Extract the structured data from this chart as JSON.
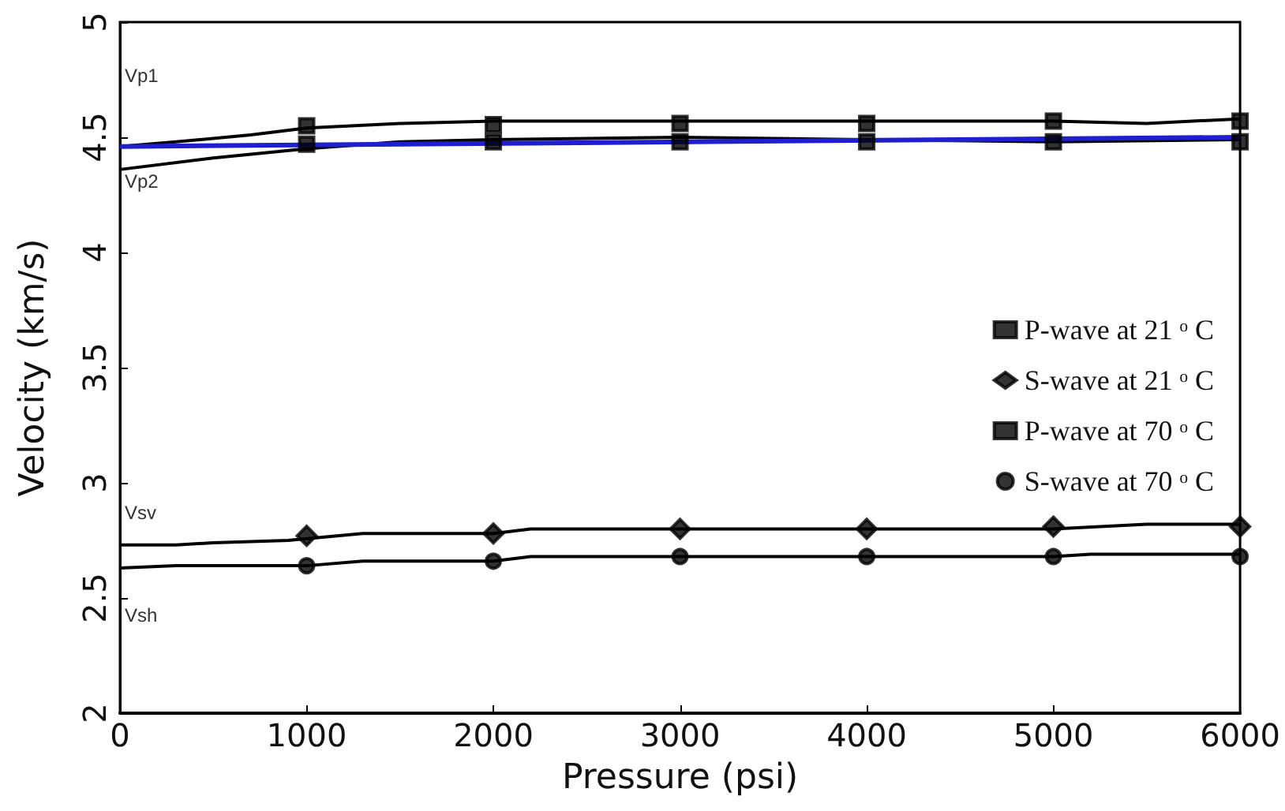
{
  "chart_data": {
    "type": "scatter",
    "xlabel": "Pressure (psi)",
    "ylabel": "Velocity (km/s)",
    "xlim": [
      0,
      6000
    ],
    "xticks": [
      0,
      1000,
      2000,
      3000,
      4000,
      5000,
      6000
    ],
    "ylim": [
      2,
      5
    ],
    "yticks": [
      2,
      2.5,
      3,
      3.5,
      4,
      4.5,
      5
    ],
    "grid": false,
    "legend": "right",
    "x": [
      1000,
      2000,
      3000,
      4000,
      5000,
      6000
    ],
    "series": [
      {
        "name": "P-wave at 21 ᵒ C",
        "color": "#000000",
        "marker": "square",
        "values": [
          4.55,
          4.555,
          4.56,
          4.56,
          4.57,
          4.57
        ]
      },
      {
        "name": "S-wave at 21 ᵒ C",
        "color": "#000000",
        "marker": "diamond",
        "values": [
          2.77,
          2.78,
          2.8,
          2.8,
          2.81,
          2.81
        ]
      },
      {
        "name": "P-wave at 70 ᵒ C",
        "color": "#000000",
        "marker": "square",
        "values": [
          4.47,
          4.48,
          4.48,
          4.48,
          4.48,
          4.48
        ]
      },
      {
        "name": "S-wave at 70 ᵒ C",
        "color": "#000000",
        "marker": "circle",
        "values": [
          2.64,
          2.66,
          2.68,
          2.68,
          2.68,
          2.68
        ]
      },
      {
        "type": "line",
        "color": "#000000",
        "marker": "none",
        "x": [
          0,
          300,
          700,
          1000,
          1500,
          2000,
          3000,
          4000,
          5000,
          5500,
          6000
        ],
        "values": [
          4.46,
          4.48,
          4.51,
          4.54,
          4.56,
          4.57,
          4.57,
          4.57,
          4.57,
          4.56,
          4.58
        ]
      },
      {
        "type": "line",
        "color": "#000000",
        "marker": "none",
        "x": [
          0,
          500,
          1000,
          1500,
          2000,
          3000,
          4000,
          5000,
          6000
        ],
        "values": [
          4.36,
          4.41,
          4.45,
          4.48,
          4.49,
          4.5,
          4.49,
          4.48,
          4.49
        ]
      },
      {
        "type": "line",
        "color": "#1f1fd0",
        "marker": "none",
        "x": [
          0,
          6000
        ],
        "values": [
          4.46,
          4.5
        ]
      },
      {
        "type": "line",
        "color": "#000000",
        "marker": "none",
        "x": [
          0,
          300,
          500,
          900,
          1300,
          2000,
          2200,
          5000,
          5500,
          6000
        ],
        "values": [
          2.73,
          2.73,
          2.74,
          2.75,
          2.78,
          2.78,
          2.8,
          2.8,
          2.82,
          2.82
        ]
      },
      {
        "type": "line",
        "color": "#000000",
        "marker": "none",
        "x": [
          0,
          300,
          1000,
          1300,
          2000,
          2200,
          5000,
          5200,
          6000
        ],
        "values": [
          2.63,
          2.64,
          2.64,
          2.66,
          2.66,
          2.68,
          2.68,
          2.69,
          2.69
        ]
      }
    ],
    "annotations": [
      "Vp1",
      "Vp2",
      "Vsv",
      "Vsh"
    ]
  }
}
